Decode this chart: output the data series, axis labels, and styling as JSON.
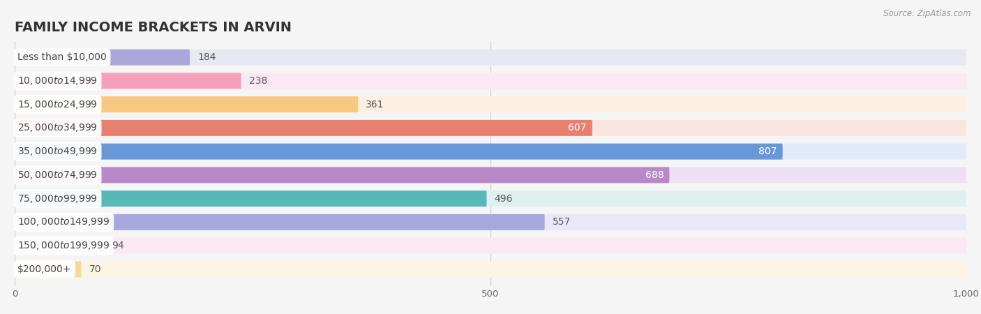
{
  "title": "FAMILY INCOME BRACKETS IN ARVIN",
  "source": "Source: ZipAtlas.com",
  "categories": [
    "Less than $10,000",
    "$10,000 to $14,999",
    "$15,000 to $24,999",
    "$25,000 to $34,999",
    "$35,000 to $49,999",
    "$50,000 to $74,999",
    "$75,000 to $99,999",
    "$100,000 to $149,999",
    "$150,000 to $199,999",
    "$200,000+"
  ],
  "values": [
    184,
    238,
    361,
    607,
    807,
    688,
    496,
    557,
    94,
    70
  ],
  "bar_colors": [
    "#aaa8d8",
    "#f4a0bc",
    "#f8c880",
    "#e88070",
    "#6898d8",
    "#b888c8",
    "#58b8b8",
    "#a8a8e0",
    "#f8b0c8",
    "#f8d898"
  ],
  "bar_bg_colors": [
    "#e8e8f4",
    "#fce8f2",
    "#fdf0e0",
    "#fae4e0",
    "#e0eaf8",
    "#ede0f4",
    "#e0f0f0",
    "#eae8f8",
    "#fce8f2",
    "#fdf4e4"
  ],
  "xlim": [
    0,
    1000
  ],
  "xticks": [
    0,
    500,
    1000
  ],
  "bar_height": 0.68,
  "label_fontsize": 10,
  "value_fontsize": 10,
  "title_fontsize": 14,
  "background_color": "#f5f5f5",
  "value_inside_threshold": 600
}
